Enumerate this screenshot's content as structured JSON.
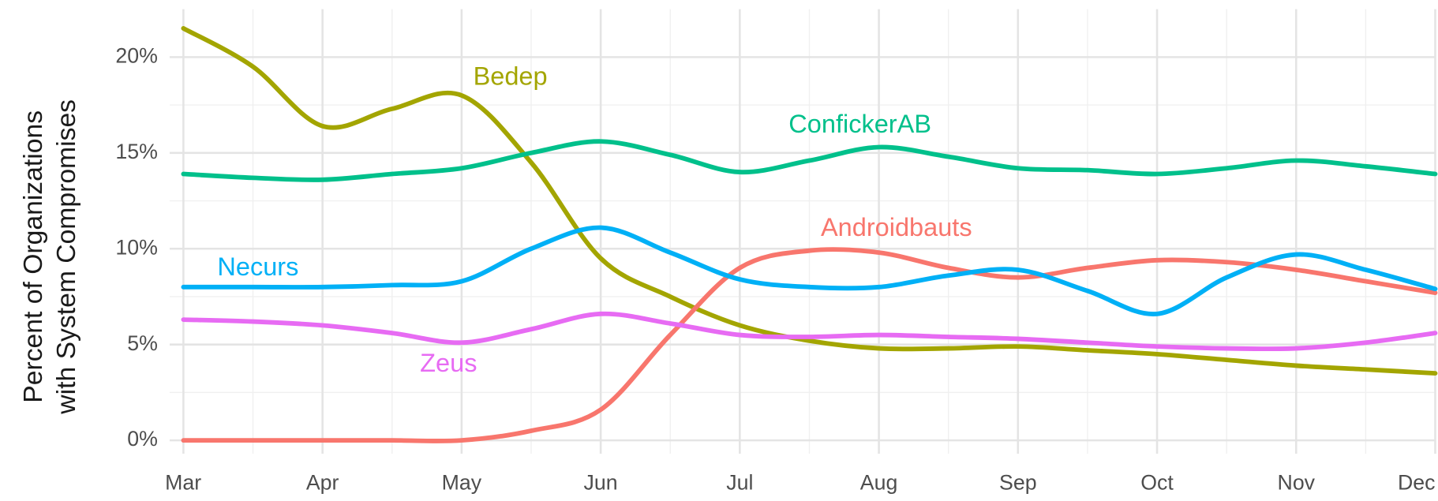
{
  "chart_data": {
    "type": "line",
    "y_label": [
      "Percent of Organizations",
      "with System Compromises"
    ],
    "categories": [
      "Mar",
      null,
      "Apr",
      null,
      "May",
      null,
      "Jun",
      null,
      "Jul",
      null,
      "Aug",
      null,
      "Sep",
      null,
      "Oct",
      null,
      "Nov",
      null,
      "Dec"
    ],
    "ylim": [
      -0.7,
      22.5
    ],
    "yticks": [
      {
        "value": 0,
        "label": "0%"
      },
      {
        "value": 5,
        "label": "5%"
      },
      {
        "value": 10,
        "label": "10%"
      },
      {
        "value": 15,
        "label": "15%"
      },
      {
        "value": 20,
        "label": "20%"
      }
    ],
    "grid": true,
    "series": [
      {
        "name": "Bedep",
        "color": "#a3a500",
        "values": [
          21.5,
          19.5,
          16.4,
          17.3,
          18.0,
          14.5,
          9.5,
          7.5,
          6.0,
          5.2,
          4.8,
          4.8,
          4.9,
          4.7,
          4.5,
          4.2,
          3.9,
          3.7,
          3.5
        ]
      },
      {
        "name": "ConfickerAB",
        "color": "#00c08b",
        "values": [
          13.9,
          13.7,
          13.6,
          13.9,
          14.2,
          15.0,
          15.6,
          14.9,
          14.0,
          14.6,
          15.3,
          14.8,
          14.2,
          14.1,
          13.9,
          14.2,
          14.6,
          14.3,
          13.9
        ]
      },
      {
        "name": "Androidbauts",
        "color": "#f8766d",
        "values": [
          0,
          0,
          0,
          0,
          0,
          0.5,
          1.6,
          5.5,
          9.0,
          9.9,
          9.8,
          9.0,
          8.5,
          9.0,
          9.4,
          9.3,
          8.9,
          8.3,
          7.7
        ]
      },
      {
        "name": "Necurs",
        "color": "#00b0f6",
        "values": [
          8.0,
          8.0,
          8.0,
          8.1,
          8.3,
          10.0,
          11.1,
          9.8,
          8.4,
          8.0,
          8.0,
          8.6,
          8.9,
          7.8,
          6.6,
          8.5,
          9.7,
          8.9,
          7.9
        ]
      },
      {
        "name": "Zeus",
        "color": "#e76bf3",
        "values": [
          6.3,
          6.2,
          6.0,
          5.6,
          5.1,
          5.8,
          6.6,
          6.1,
          5.5,
          5.4,
          5.5,
          5.4,
          5.3,
          5.1,
          4.9,
          4.8,
          4.8,
          5.1,
          5.6
        ]
      }
    ]
  }
}
